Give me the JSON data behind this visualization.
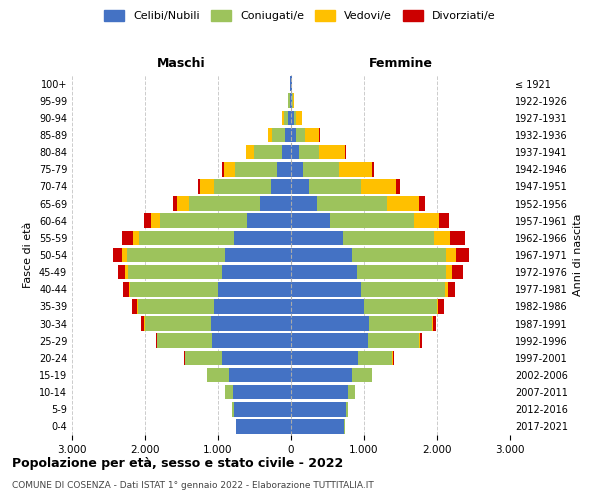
{
  "age_groups_display": [
    "0-4",
    "5-9",
    "10-14",
    "15-19",
    "20-24",
    "25-29",
    "30-34",
    "35-39",
    "40-44",
    "45-49",
    "50-54",
    "55-59",
    "60-64",
    "65-69",
    "70-74",
    "75-79",
    "80-84",
    "85-89",
    "90-94",
    "95-99",
    "100+"
  ],
  "birth_years_display": [
    "2017-2021",
    "2012-2016",
    "2007-2011",
    "2002-2006",
    "1997-2001",
    "1992-1996",
    "1987-1991",
    "1982-1986",
    "1977-1981",
    "1972-1976",
    "1967-1971",
    "1962-1966",
    "1957-1961",
    "1952-1956",
    "1947-1951",
    "1942-1946",
    "1937-1941",
    "1932-1936",
    "1927-1931",
    "1922-1926",
    "≤ 1921"
  ],
  "male_celibi": [
    750,
    780,
    800,
    850,
    950,
    1080,
    1100,
    1050,
    1000,
    950,
    900,
    780,
    600,
    420,
    280,
    190,
    130,
    80,
    40,
    20,
    10
  ],
  "male_coniugati": [
    10,
    30,
    100,
    300,
    500,
    750,
    900,
    1050,
    1200,
    1280,
    1350,
    1300,
    1200,
    980,
    780,
    580,
    380,
    180,
    60,
    20,
    5
  ],
  "male_vedovi": [
    0,
    0,
    1,
    2,
    3,
    5,
    10,
    15,
    20,
    40,
    60,
    80,
    120,
    160,
    180,
    150,
    100,
    50,
    20,
    5,
    2
  ],
  "male_divorziati": [
    0,
    0,
    2,
    5,
    10,
    20,
    40,
    60,
    80,
    100,
    130,
    150,
    100,
    60,
    40,
    20,
    10,
    5,
    2,
    0,
    0
  ],
  "female_celibi": [
    730,
    760,
    780,
    830,
    920,
    1050,
    1070,
    1000,
    960,
    900,
    830,
    710,
    530,
    360,
    240,
    160,
    110,
    70,
    35,
    15,
    8
  ],
  "female_coniugati": [
    8,
    25,
    90,
    280,
    470,
    710,
    860,
    1000,
    1150,
    1230,
    1300,
    1250,
    1150,
    950,
    720,
    500,
    280,
    120,
    30,
    10,
    3
  ],
  "female_vedovi": [
    0,
    0,
    0,
    1,
    3,
    5,
    10,
    20,
    40,
    80,
    130,
    220,
    350,
    440,
    480,
    450,
    350,
    200,
    80,
    20,
    5
  ],
  "female_divorziati": [
    0,
    0,
    2,
    5,
    12,
    25,
    45,
    70,
    100,
    140,
    180,
    200,
    140,
    90,
    55,
    30,
    15,
    8,
    3,
    0,
    0
  ],
  "colors": {
    "celibi": "#4472c4",
    "coniugati": "#9dc35c",
    "vedovi": "#ffc000",
    "divorziati": "#cc0000"
  },
  "xlim": 3000,
  "xtick_labels": [
    "3.000",
    "2.000",
    "1.000",
    "0",
    "1.000",
    "2.000",
    "3.000"
  ],
  "title": "Popolazione per età, sesso e stato civile - 2022",
  "subtitle": "COMUNE DI COSENZA - Dati ISTAT 1° gennaio 2022 - Elaborazione TUTTITALIA.IT",
  "ylabel_left": "Fasce di età",
  "ylabel_right": "Anni di nascita",
  "label_maschi": "Maschi",
  "label_femmine": "Femmine",
  "legend_labels": [
    "Celibi/Nubili",
    "Coniugati/e",
    "Vedovi/e",
    "Divorziati/e"
  ],
  "bg_color": "#ffffff",
  "grid_color": "#cccccc"
}
